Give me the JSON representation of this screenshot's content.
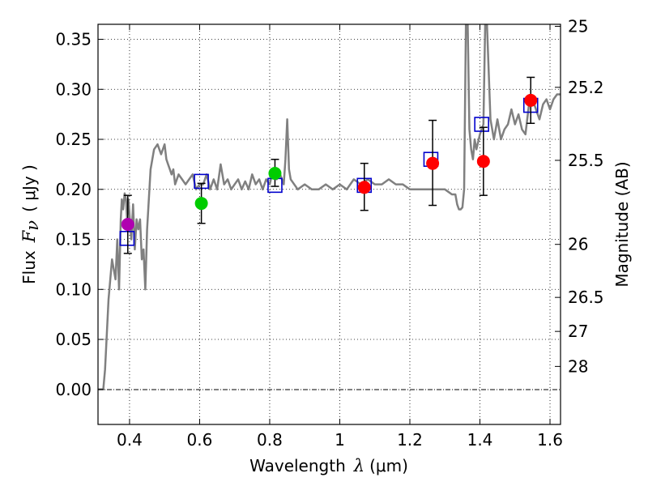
{
  "chart_data": {
    "type": "scatter",
    "xlabel_prefix": "Wavelength",
    "xlabel_symbol": "λ",
    "xlabel_unit": "(μm)",
    "ylabel_prefix": "Flux",
    "ylabel_symbol": "F",
    "ylabel_subscript": "ν",
    "ylabel_unit": "( μJy )",
    "ylabel_right": "Magnitude (AB)",
    "xlim": [
      0.31,
      1.63
    ],
    "ylim": [
      -0.035,
      0.365
    ],
    "grid": true,
    "x_ticks": [
      {
        "value": 0.4,
        "label": "0.4"
      },
      {
        "value": 0.6,
        "label": "0.6"
      },
      {
        "value": 0.8,
        "label": "0.8"
      },
      {
        "value": 1.0,
        "label": "1"
      },
      {
        "value": 1.2,
        "label": "1.2"
      },
      {
        "value": 1.4,
        "label": "1.4"
      },
      {
        "value": 1.6,
        "label": "1.6"
      }
    ],
    "y_ticks": [
      {
        "value": 0.0,
        "label": "0.00"
      },
      {
        "value": 0.05,
        "label": "0.05"
      },
      {
        "value": 0.1,
        "label": "0.10"
      },
      {
        "value": 0.15,
        "label": "0.15"
      },
      {
        "value": 0.2,
        "label": "0.20"
      },
      {
        "value": 0.25,
        "label": "0.25"
      },
      {
        "value": 0.3,
        "label": "0.30"
      },
      {
        "value": 0.35,
        "label": "0.35"
      }
    ],
    "magnitude_ticks": [
      {
        "flux": 0.363,
        "label": "25"
      },
      {
        "flux": 0.302,
        "label": "25.2"
      },
      {
        "flux": 0.229,
        "label": "25.5"
      },
      {
        "flux": 0.145,
        "label": "26"
      },
      {
        "flux": 0.092,
        "label": "26.5"
      },
      {
        "flux": 0.058,
        "label": "27"
      },
      {
        "flux": 0.023,
        "label": "28"
      }
    ],
    "model_sed": {
      "name": "Model spectrum",
      "color": "#808080",
      "x": [
        0.31,
        0.325,
        0.33,
        0.34,
        0.35,
        0.36,
        0.365,
        0.37,
        0.375,
        0.378,
        0.382,
        0.386,
        0.39,
        0.393,
        0.397,
        0.4,
        0.405,
        0.41,
        0.415,
        0.42,
        0.425,
        0.43,
        0.435,
        0.44,
        0.445,
        0.45,
        0.46,
        0.47,
        0.48,
        0.49,
        0.5,
        0.505,
        0.51,
        0.515,
        0.52,
        0.525,
        0.53,
        0.54,
        0.55,
        0.56,
        0.57,
        0.58,
        0.59,
        0.6,
        0.61,
        0.62,
        0.63,
        0.64,
        0.65,
        0.66,
        0.67,
        0.68,
        0.69,
        0.7,
        0.71,
        0.72,
        0.73,
        0.74,
        0.75,
        0.76,
        0.77,
        0.78,
        0.79,
        0.8,
        0.81,
        0.82,
        0.83,
        0.84,
        0.845,
        0.85,
        0.855,
        0.86,
        0.87,
        0.88,
        0.9,
        0.92,
        0.94,
        0.96,
        0.98,
        1.0,
        1.02,
        1.04,
        1.06,
        1.08,
        1.1,
        1.12,
        1.14,
        1.16,
        1.18,
        1.2,
        1.22,
        1.24,
        1.26,
        1.28,
        1.3,
        1.32,
        1.33,
        1.335,
        1.34,
        1.345,
        1.35,
        1.355,
        1.36,
        1.365,
        1.37,
        1.375,
        1.38,
        1.385,
        1.39,
        1.4,
        1.41,
        1.415,
        1.42,
        1.43,
        1.44,
        1.45,
        1.46,
        1.47,
        1.48,
        1.49,
        1.5,
        1.51,
        1.52,
        1.53,
        1.54,
        1.55,
        1.56,
        1.57,
        1.58,
        1.59,
        1.6,
        1.61,
        1.62,
        1.63
      ],
      "y": [
        0.0,
        0.0,
        0.02,
        0.09,
        0.13,
        0.11,
        0.15,
        0.1,
        0.17,
        0.19,
        0.18,
        0.196,
        0.19,
        0.17,
        0.19,
        0.175,
        0.15,
        0.185,
        0.14,
        0.17,
        0.16,
        0.17,
        0.13,
        0.14,
        0.1,
        0.16,
        0.22,
        0.24,
        0.245,
        0.235,
        0.245,
        0.23,
        0.225,
        0.22,
        0.215,
        0.22,
        0.205,
        0.215,
        0.21,
        0.205,
        0.21,
        0.215,
        0.2,
        0.205,
        0.205,
        0.215,
        0.2,
        0.21,
        0.2,
        0.225,
        0.205,
        0.21,
        0.2,
        0.205,
        0.21,
        0.2,
        0.208,
        0.2,
        0.215,
        0.205,
        0.21,
        0.2,
        0.21,
        0.205,
        0.22,
        0.21,
        0.215,
        0.205,
        0.23,
        0.27,
        0.22,
        0.21,
        0.205,
        0.2,
        0.205,
        0.2,
        0.2,
        0.205,
        0.2,
        0.205,
        0.2,
        0.21,
        0.205,
        0.21,
        0.205,
        0.205,
        0.21,
        0.205,
        0.205,
        0.2,
        0.2,
        0.2,
        0.2,
        0.2,
        0.2,
        0.195,
        0.195,
        0.185,
        0.18,
        0.18,
        0.182,
        0.2,
        0.365,
        0.365,
        0.26,
        0.24,
        0.23,
        0.25,
        0.24,
        0.255,
        0.265,
        0.365,
        0.365,
        0.27,
        0.25,
        0.27,
        0.25,
        0.26,
        0.265,
        0.28,
        0.265,
        0.275,
        0.26,
        0.255,
        0.285,
        0.29,
        0.28,
        0.27,
        0.285,
        0.29,
        0.28,
        0.29,
        0.295,
        0.295
      ]
    },
    "model_fluxes": {
      "name": "Model band fluxes",
      "color": "#0000cc",
      "marker": "square",
      "points": [
        {
          "x": 0.393,
          "y": 0.151
        },
        {
          "x": 0.605,
          "y": 0.208
        },
        {
          "x": 0.815,
          "y": 0.204
        },
        {
          "x": 1.07,
          "y": 0.204
        },
        {
          "x": 1.26,
          "y": 0.23
        },
        {
          "x": 1.405,
          "y": 0.265
        },
        {
          "x": 1.545,
          "y": 0.284
        }
      ]
    },
    "observed": [
      {
        "x": 0.395,
        "y": 0.165,
        "err_low": 0.029,
        "err_high": 0.029,
        "color": "#b000b0"
      },
      {
        "x": 0.605,
        "y": 0.186,
        "err_low": 0.02,
        "err_high": 0.02,
        "color": "#00cc00"
      },
      {
        "x": 0.815,
        "y": 0.216,
        "err_low": 0.013,
        "err_high": 0.014,
        "color": "#00cc00"
      },
      {
        "x": 1.07,
        "y": 0.202,
        "err_low": 0.023,
        "err_high": 0.024,
        "color": "#ff0000"
      },
      {
        "x": 1.265,
        "y": 0.226,
        "err_low": 0.042,
        "err_high": 0.043,
        "color": "#ff0000"
      },
      {
        "x": 1.41,
        "y": 0.228,
        "err_low": 0.034,
        "err_high": 0.034,
        "color": "#ff0000"
      },
      {
        "x": 1.545,
        "y": 0.289,
        "err_low": 0.023,
        "err_high": 0.023,
        "color": "#ff0000"
      }
    ],
    "errorbar_color": "#000000",
    "zero_line_color": "#000000"
  }
}
